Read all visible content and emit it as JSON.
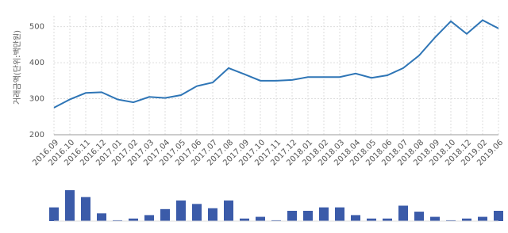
{
  "chart_data": {
    "type": "line",
    "y_label": "거래금액(단위:백만원)",
    "categories": [
      "2016.09",
      "2016.10",
      "2016.11",
      "2016.12",
      "2017.01",
      "2017.02",
      "2017.03",
      "2017.04",
      "2017.05",
      "2017.06",
      "2017.07",
      "2017.08",
      "2017.09",
      "2017.10",
      "2017.11",
      "2017.12",
      "2018.01",
      "2018.02",
      "2018.03",
      "2018.04",
      "2018.05",
      "2018.06",
      "2018.07",
      "2018.08",
      "2018.09",
      "2018.10",
      "2018.12",
      "2019.02",
      "2019.06"
    ],
    "values": [
      275,
      298,
      316,
      318,
      298,
      290,
      305,
      302,
      310,
      335,
      345,
      385,
      368,
      350,
      350,
      352,
      360,
      360,
      360,
      370,
      358,
      365,
      385,
      420,
      470,
      515,
      480,
      518,
      495
    ],
    "color": "#2e75b6",
    "ylim": [
      200,
      530
    ],
    "yticks": [
      200,
      300,
      400,
      500
    ],
    "grid": true,
    "volume_values": [
      16,
      36,
      28,
      9,
      1,
      3,
      7,
      14,
      24,
      20,
      15,
      24,
      3,
      5,
      1,
      12,
      12,
      16,
      16,
      7,
      3,
      3,
      18,
      11,
      5,
      1,
      3,
      5,
      12
    ],
    "volume_color": "#3b5ba9"
  }
}
